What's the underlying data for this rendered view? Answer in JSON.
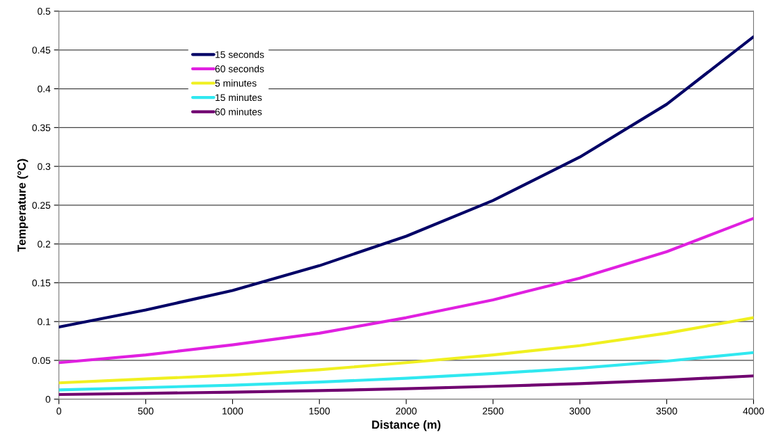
{
  "chart_data": {
    "type": "line",
    "xlabel": "Distance (m)",
    "ylabel": "Temperature (°C)",
    "x": [
      0,
      500,
      1000,
      1500,
      2000,
      2500,
      3000,
      3500,
      4000
    ],
    "series": [
      {
        "name": "15 seconds",
        "color": "#000066",
        "values": [
          0.093,
          0.115,
          0.14,
          0.172,
          0.21,
          0.256,
          0.312,
          0.38,
          0.467
        ]
      },
      {
        "name": "60 seconds",
        "color": "#e020e0",
        "values": [
          0.047,
          0.057,
          0.07,
          0.085,
          0.105,
          0.128,
          0.156,
          0.19,
          0.233
        ]
      },
      {
        "name": "5 minutes",
        "color": "#f0f020",
        "values": [
          0.021,
          0.026,
          0.031,
          0.038,
          0.047,
          0.057,
          0.069,
          0.085,
          0.105
        ]
      },
      {
        "name": "15 minutes",
        "color": "#30e8f0",
        "values": [
          0.012,
          0.015,
          0.018,
          0.022,
          0.027,
          0.033,
          0.04,
          0.049,
          0.06
        ]
      },
      {
        "name": "60 minutes",
        "color": "#700070",
        "values": [
          0.006,
          0.0075,
          0.009,
          0.011,
          0.0135,
          0.0165,
          0.02,
          0.0245,
          0.03
        ]
      }
    ],
    "xlim": [
      0,
      4000
    ],
    "xticks": [
      0,
      500,
      1000,
      1500,
      2000,
      2500,
      3000,
      3500,
      4000
    ],
    "ylim": [
      0,
      0.5
    ],
    "yticks": [
      0,
      0.05,
      0.1,
      0.15,
      0.2,
      0.25,
      0.3,
      0.35,
      0.4,
      0.45,
      0.5
    ],
    "grid": "y",
    "legend": "top left",
    "marker": "none",
    "line_style": "solid"
  }
}
